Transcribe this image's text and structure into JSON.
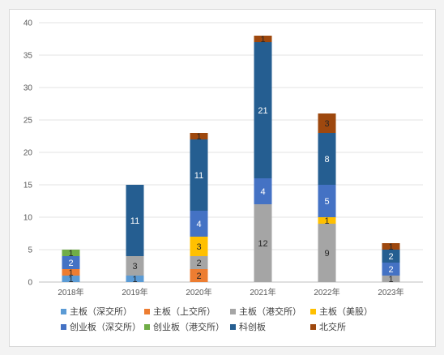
{
  "chart_data": {
    "type": "bar",
    "stacked": true,
    "title": "",
    "xlabel": "",
    "ylabel": "",
    "categories": [
      "2018年",
      "2019年",
      "2020年",
      "2021年",
      "2022年",
      "2023年"
    ],
    "ylim": [
      0,
      40
    ],
    "yticks": [
      0,
      5,
      10,
      15,
      20,
      25,
      30,
      35,
      40
    ],
    "grid": true,
    "legend_position": "bottom",
    "series": [
      {
        "name": "主板（深交所）",
        "color": "#5b9bd5",
        "values": [
          1,
          1,
          0,
          0,
          0,
          0
        ]
      },
      {
        "name": "主板（上交所）",
        "color": "#ed7d31",
        "values": [
          1,
          0,
          2,
          0,
          0,
          0
        ]
      },
      {
        "name": "主板（港交所）",
        "color": "#a5a5a5",
        "values": [
          0,
          3,
          2,
          12,
          9,
          1
        ]
      },
      {
        "name": "主板（美股）",
        "color": "#ffc000",
        "values": [
          0,
          0,
          3,
          0,
          1,
          0
        ]
      },
      {
        "name": "创业板（深交所）",
        "color": "#4472c4",
        "values": [
          2,
          0,
          4,
          4,
          5,
          2
        ]
      },
      {
        "name": "创业板（港交所）",
        "color": "#70ad47",
        "values": [
          1,
          0,
          0,
          0,
          0,
          0
        ]
      },
      {
        "name": "科创板",
        "color": "#255e91",
        "values": [
          0,
          11,
          11,
          21,
          8,
          2
        ]
      },
      {
        "name": "北交所",
        "color": "#9e480e",
        "values": [
          0,
          0,
          1,
          1,
          3,
          1
        ]
      }
    ]
  }
}
